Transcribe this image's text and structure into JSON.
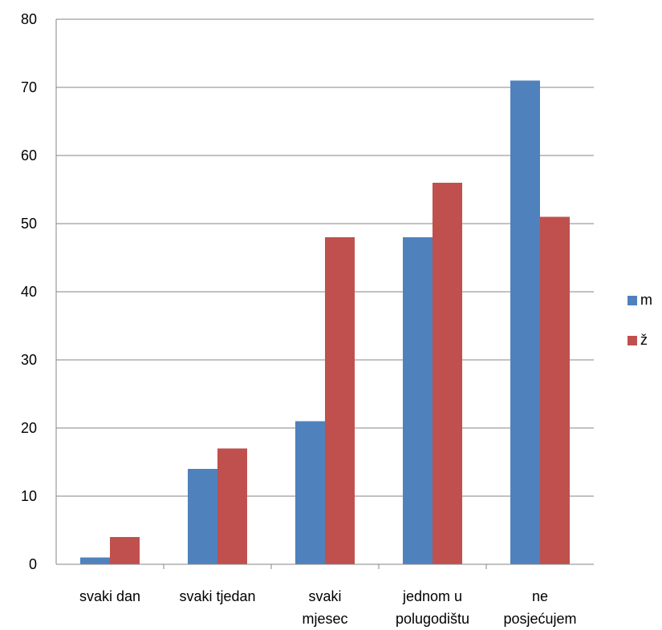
{
  "chart_data": {
    "type": "bar",
    "categories": [
      [
        "svaki dan"
      ],
      [
        "svaki tjedan"
      ],
      [
        "svaki",
        "mjesec"
      ],
      [
        "jednom u",
        "polugodištu"
      ],
      [
        "ne",
        "posjećujem"
      ]
    ],
    "series": [
      {
        "name": "m",
        "color": "#4F81BD",
        "values": [
          1,
          14,
          21,
          48,
          71
        ]
      },
      {
        "name": "ž",
        "color": "#C0504D",
        "values": [
          4,
          17,
          48,
          56,
          51
        ]
      }
    ],
    "ylim": [
      0,
      80
    ],
    "yticks": [
      "0",
      "10",
      "20",
      "30",
      "40",
      "50",
      "60",
      "70",
      "80"
    ],
    "grid": true,
    "legend": "right",
    "title": "",
    "xlabel": "",
    "ylabel": ""
  }
}
